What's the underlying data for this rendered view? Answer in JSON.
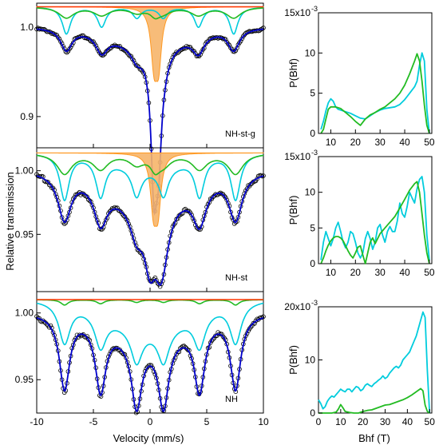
{
  "chart_data": [
    {
      "type": "line",
      "panel": "mossbauer",
      "sample_label": "NH-st-g",
      "ylabel": "Relative transmission",
      "xlim": [
        -10,
        10
      ],
      "ylim": [
        0.865,
        1.027
      ],
      "yticks": [
        0.9,
        1.0
      ],
      "ytick_labels": [
        "0.9",
        "1.0"
      ],
      "baseline": 1.023,
      "hyperfine_field_T": 45,
      "series": [
        {
          "role": "fit",
          "color": "#0000cc",
          "shape": {
            "b": 1.0,
            "dep": [
              0.024,
              0.02,
              0.014,
              0.014,
              0.02,
              0.024
            ],
            "w": 0.62,
            "Qd": [
              0.14,
              0.095
            ],
            "Qw": 0.32,
            "Ql": [
              0.35,
              0.75
            ],
            "broad": [
              0.02,
              3.2
            ]
          }
        },
        {
          "role": "data",
          "color": "#000000",
          "marker": "circle",
          "points": 180
        },
        {
          "role": "component",
          "color": "#00ccdd",
          "shape": {
            "b": 1.023,
            "dep": [
              0.03,
              0.022,
              0.012,
              0.012,
              0.022,
              0.03
            ],
            "w": 0.45
          }
        },
        {
          "role": "component",
          "color": "#22bb22",
          "shape": {
            "b": 1.023,
            "dep": [
              0.012,
              0.009,
              0.006,
              0.006,
              0.009,
              0.012
            ],
            "w": 0.8,
            "Qd": [
              0.008
            ],
            "Qw": 0.5,
            "Ql": [
              0.45
            ]
          }
        },
        {
          "role": "doublet",
          "color": "#ff9922",
          "fill": "#f6b56a",
          "shape": {
            "b": 1.023,
            "Qd": [
              0.058,
              0.058
            ],
            "Qw": 0.32,
            "Ql": [
              0.35,
              0.75
            ]
          }
        },
        {
          "role": "component",
          "color": "#ff3300",
          "shape": {
            "b": 1.023,
            "flat": true
          }
        }
      ]
    },
    {
      "type": "line",
      "panel": "mossbauer",
      "sample_label": "NH-st",
      "xlim": [
        -10,
        10
      ],
      "ylim": [
        0.905,
        1.018
      ],
      "yticks": [
        0.95,
        1.0
      ],
      "ytick_labels": [
        "0.95",
        "1.00"
      ],
      "baseline": 1.014,
      "hyperfine_field_T": 46,
      "series": [
        {
          "role": "fit",
          "color": "#0000cc",
          "shape": {
            "b": 1.0,
            "dep": [
              0.036,
              0.03,
              0.022,
              0.022,
              0.03,
              0.036
            ],
            "w": 0.7,
            "Qd": [
              0.04,
              0.03
            ],
            "Qw": 0.6,
            "Ql": [
              0.0,
              0.9
            ],
            "broad": [
              0.025,
              3.4
            ]
          }
        },
        {
          "role": "data",
          "color": "#000000",
          "marker": "circle",
          "points": 180
        },
        {
          "role": "component",
          "color": "#00ccdd",
          "shape": {
            "b": 1.014,
            "dep": [
              0.036,
              0.03,
              0.022,
              0.022,
              0.03,
              0.036
            ],
            "w": 0.5,
            "broad": [
              0.012,
              3.0
            ]
          }
        },
        {
          "role": "component",
          "color": "#22bb22",
          "shape": {
            "b": 1.014,
            "dep": [
              0.016,
              0.012,
              0.008,
              0.008,
              0.012,
              0.016
            ],
            "w": 0.8,
            "Qd": [
              0.01
            ],
            "Qw": 0.5,
            "Ql": [
              0.45
            ]
          }
        },
        {
          "role": "doublet",
          "color": "#ff9922",
          "fill": "#f6b56a",
          "shape": {
            "b": 1.014,
            "Qd": [
              0.04,
              0.04
            ],
            "Qw": 0.32,
            "Ql": [
              0.3,
              0.7
            ]
          }
        }
      ]
    },
    {
      "type": "line",
      "panel": "mossbauer",
      "sample_label": "NH",
      "xlabel": "Velocity (mm/s)",
      "xlim": [
        -10,
        10
      ],
      "xticks": [
        -10,
        -5,
        0,
        5,
        10
      ],
      "xtick_labels": [
        "-10",
        "-5",
        "0",
        "5",
        "10"
      ],
      "ylim": [
        0.925,
        1.016
      ],
      "yticks": [
        0.95,
        1.0
      ],
      "ytick_labels": [
        "0.95",
        "1.00"
      ],
      "baseline": 1.01,
      "hyperfine_field_T": 46,
      "series": [
        {
          "role": "fit",
          "color": "#0000cc",
          "shape": {
            "b": 1.0,
            "dep": [
              0.055,
              0.05,
              0.05,
              0.05,
              0.05,
              0.055
            ],
            "w": 0.55,
            "broad": [
              0.02,
              3.2
            ]
          }
        },
        {
          "role": "data",
          "color": "#000000",
          "marker": "circle",
          "points": 180
        },
        {
          "role": "component",
          "color": "#00ccdd",
          "shape": {
            "b": 1.01,
            "dep": [
              0.03,
              0.025,
              0.025,
              0.025,
              0.025,
              0.03
            ],
            "w": 0.6,
            "broad": [
              0.022,
              3.6
            ]
          }
        },
        {
          "role": "component",
          "color": "#22bb22",
          "shape": {
            "b": 1.01,
            "dep": [
              0.004,
              0.003,
              0.002,
              0.002,
              0.003,
              0.004
            ],
            "w": 0.4
          }
        },
        {
          "role": "component",
          "color": "#ff3300",
          "shape": {
            "b": 1.01,
            "flat": true
          }
        }
      ]
    },
    {
      "type": "line",
      "panel": "distribution",
      "ylabel": "P(Bhf)",
      "ymax_label": "15x10",
      "ymax_exp": "-3",
      "xlim": [
        5,
        51
      ],
      "xticks": [
        10,
        20,
        30,
        40,
        50
      ],
      "xtick_labels": [
        "10",
        "20",
        "30",
        "40",
        "50"
      ],
      "ylim": [
        0,
        15
      ],
      "yticks": [
        0,
        5,
        10
      ],
      "ytick_labels": [
        "0",
        "5",
        "10"
      ],
      "series": [
        {
          "color": "#00ccdd",
          "x": [
            6,
            7,
            8,
            9,
            10,
            11,
            12,
            13,
            14,
            15,
            16,
            18,
            20,
            22,
            24,
            26,
            28,
            30,
            32,
            34,
            36,
            38,
            40,
            42,
            44,
            45,
            46,
            47,
            48,
            49,
            50
          ],
          "y": [
            0.5,
            1.5,
            2.8,
            3.8,
            4.3,
            4.0,
            3.3,
            3.0,
            2.9,
            2.8,
            2.7,
            2.5,
            2.2,
            1.9,
            1.8,
            2.2,
            2.6,
            2.9,
            3.1,
            3.2,
            3.3,
            3.6,
            4.2,
            5.0,
            5.8,
            6.5,
            8.5,
            10.0,
            9.0,
            3.0,
            0.0
          ]
        },
        {
          "color": "#22bb22",
          "x": [
            6,
            7,
            8,
            9,
            10,
            12,
            14,
            16,
            18,
            20,
            22,
            24,
            26,
            28,
            30,
            32,
            34,
            36,
            38,
            40,
            42,
            44,
            45,
            46,
            47,
            48,
            49,
            50
          ],
          "y": [
            0.0,
            0.5,
            1.8,
            3.0,
            3.3,
            3.3,
            3.1,
            2.6,
            2.1,
            1.5,
            1.0,
            1.8,
            2.3,
            2.6,
            3.0,
            3.3,
            3.8,
            4.3,
            5.0,
            6.0,
            7.4,
            9.0,
            9.9,
            9.0,
            6.5,
            3.5,
            1.0,
            0.0
          ]
        }
      ]
    },
    {
      "type": "line",
      "panel": "distribution",
      "ylabel": "P(Bhf)",
      "ymax_label": "15x10",
      "ymax_exp": "-3",
      "xlim": [
        5,
        51
      ],
      "xticks": [
        10,
        20,
        30,
        40,
        50
      ],
      "xtick_labels": [
        "10",
        "20",
        "30",
        "40",
        "50"
      ],
      "ylim": [
        0,
        15
      ],
      "yticks": [
        0,
        5,
        10
      ],
      "ytick_labels": [
        "0",
        "5",
        "10"
      ],
      "series": [
        {
          "color": "#00ccdd",
          "x": [
            6,
            7,
            8,
            9,
            10,
            11,
            12,
            13,
            14,
            15,
            16,
            17,
            18,
            19,
            20,
            21,
            22,
            23,
            24,
            25,
            26,
            27,
            28,
            29,
            30,
            31,
            32,
            33,
            34,
            35,
            36,
            37,
            38,
            39,
            40,
            41,
            42,
            43,
            44,
            45,
            46,
            47,
            48,
            49,
            50
          ],
          "y": [
            0.5,
            3.0,
            4.5,
            3.5,
            2.5,
            3.5,
            5.0,
            5.8,
            4.5,
            3.0,
            2.2,
            3.0,
            4.5,
            4.2,
            3.0,
            1.5,
            0.8,
            1.5,
            3.5,
            4.5,
            3.5,
            2.0,
            3.0,
            5.0,
            5.5,
            4.0,
            3.0,
            4.5,
            5.2,
            4.5,
            4.5,
            6.0,
            8.5,
            7.0,
            6.5,
            8.0,
            10.0,
            9.2,
            8.5,
            10.5,
            11.8,
            12.2,
            10.0,
            4.0,
            0.5
          ]
        },
        {
          "color": "#22bb22",
          "x": [
            6,
            7,
            8,
            9,
            10,
            11,
            12,
            13,
            14,
            15,
            16,
            17,
            18,
            19,
            20,
            21,
            22,
            23,
            24,
            25,
            26,
            27,
            28,
            29,
            30,
            32,
            34,
            36,
            38,
            40,
            42,
            44,
            45,
            46,
            47,
            48,
            49,
            50
          ],
          "y": [
            0.0,
            0.8,
            1.8,
            2.6,
            3.2,
            3.6,
            3.8,
            3.8,
            3.6,
            3.2,
            2.5,
            1.8,
            1.2,
            0.8,
            1.5,
            2.3,
            2.5,
            1.2,
            0.0,
            1.5,
            3.0,
            3.6,
            2.8,
            3.5,
            4.2,
            5.0,
            5.8,
            6.6,
            7.8,
            9.0,
            10.3,
            11.2,
            11.5,
            10.0,
            7.0,
            4.0,
            1.5,
            0.0
          ]
        }
      ]
    },
    {
      "type": "line",
      "panel": "distribution",
      "ylabel": "P(Bhf)",
      "xlabel": "Bhf (T)",
      "ymax_label": "20x10",
      "ymax_exp": "-3",
      "xlim": [
        0,
        51
      ],
      "xticks": [
        0,
        10,
        20,
        30,
        40,
        50
      ],
      "xtick_labels": [
        "0",
        "10",
        "20",
        "30",
        "40",
        "50"
      ],
      "ylim": [
        0,
        20
      ],
      "yticks": [
        0,
        10
      ],
      "ytick_labels": [
        "0",
        "10"
      ],
      "series": [
        {
          "color": "#00ccdd",
          "x": [
            0,
            1,
            2,
            3,
            4,
            5,
            6,
            7,
            8,
            9,
            10,
            11,
            12,
            13,
            14,
            15,
            16,
            17,
            18,
            19,
            20,
            21,
            22,
            23,
            24,
            25,
            26,
            27,
            28,
            29,
            30,
            31,
            32,
            33,
            34,
            35,
            36,
            37,
            38,
            39,
            40,
            41,
            42,
            43,
            44,
            45,
            46,
            47,
            48,
            49,
            50
          ],
          "y": [
            2.5,
            1.8,
            0.8,
            1.2,
            2.2,
            2.8,
            3.2,
            3.0,
            3.5,
            4.0,
            4.5,
            4.2,
            4.0,
            4.5,
            4.5,
            4.0,
            4.5,
            5.0,
            4.8,
            4.2,
            4.5,
            5.2,
            5.5,
            5.2,
            5.0,
            5.5,
            5.8,
            6.2,
            6.5,
            7.0,
            6.5,
            6.8,
            7.5,
            8.0,
            8.5,
            8.8,
            8.5,
            9.0,
            10.0,
            10.5,
            11.0,
            11.5,
            12.5,
            13.5,
            14.5,
            16.0,
            17.5,
            19.0,
            18.0,
            8.0,
            0.0
          ]
        },
        {
          "color": "#22bb22",
          "x": [
            0,
            2,
            4,
            6,
            8,
            9,
            10,
            11,
            12,
            14,
            16,
            18,
            20,
            22,
            24,
            26,
            28,
            30,
            32,
            34,
            36,
            38,
            40,
            42,
            44,
            46,
            47,
            48,
            49,
            50
          ],
          "y": [
            0.0,
            0.0,
            0.0,
            0.0,
            0.2,
            0.8,
            1.6,
            1.0,
            0.3,
            0.1,
            0.0,
            0.0,
            0.3,
            0.5,
            0.6,
            0.9,
            1.2,
            1.5,
            1.6,
            1.9,
            2.2,
            2.5,
            2.9,
            3.4,
            4.0,
            4.6,
            4.2,
            1.5,
            0.3,
            0.0
          ]
        }
      ]
    }
  ]
}
